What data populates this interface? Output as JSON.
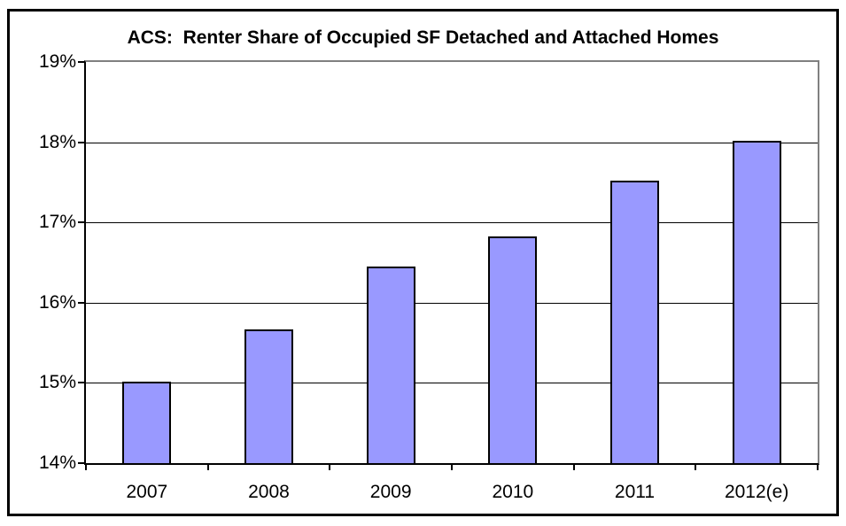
{
  "chart_data": {
    "type": "bar",
    "title": "ACS:  Renter Share of Occupied SF Detached and Attached Homes",
    "categories": [
      "2007",
      "2008",
      "2009",
      "2010",
      "2011",
      "2012(e)"
    ],
    "values": [
      15.02,
      15.67,
      16.45,
      16.83,
      17.52,
      18.02
    ],
    "xlabel": "",
    "ylabel": "",
    "ylim": [
      14,
      19
    ],
    "y_tick_step": 1,
    "y_tick_labels": [
      "19%",
      "18%",
      "17%",
      "16%",
      "15%",
      "14%"
    ],
    "grid": true,
    "legend_position": "none",
    "colors": {
      "bar_fill": "#9999FF",
      "bar_border": "#000000",
      "gridline": "#000000",
      "plot_border": "#808080",
      "axis": "#000000",
      "text": "#000000",
      "background": "#FFFFFF"
    }
  }
}
